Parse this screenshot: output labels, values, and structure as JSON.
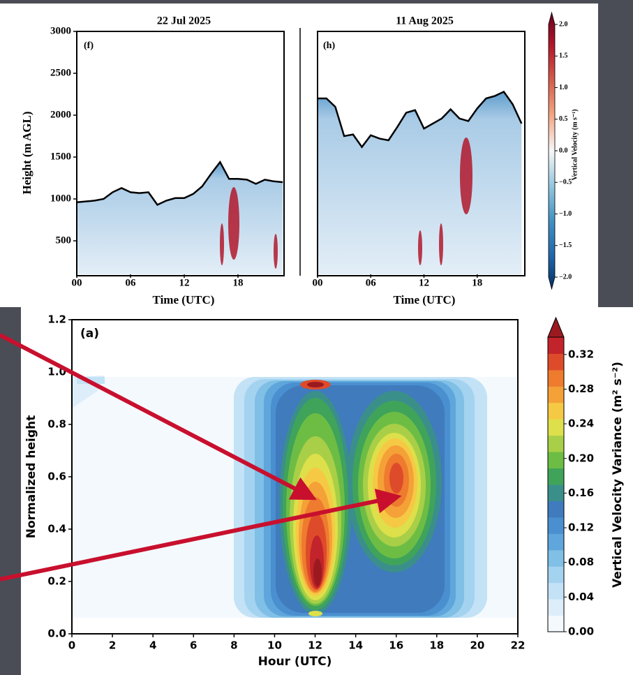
{
  "chart_data": [
    {
      "type": "heatmap",
      "title": "22 Jul 2025",
      "panel_label": "(f)",
      "xlabel": "Time (UTC)",
      "ylabel": "Height (m AGL)",
      "xlim": [
        0,
        24
      ],
      "ylim": [
        100,
        3000
      ],
      "xticks": [
        {
          "value": 0,
          "label": "00"
        },
        {
          "value": 6,
          "label": "06"
        },
        {
          "value": 12,
          "label": "12"
        },
        {
          "value": 18,
          "label": "18"
        }
      ],
      "yticks": [
        500,
        1000,
        1500,
        2000,
        2500,
        3000
      ],
      "boundary": {
        "color": "#000000",
        "x": [
          0,
          2,
          3,
          4,
          5,
          6,
          7,
          8,
          9,
          10,
          11,
          12,
          13,
          14,
          15,
          16,
          17,
          18,
          19,
          20,
          21,
          22,
          23
        ],
        "values": [
          960,
          980,
          1000,
          1080,
          1130,
          1080,
          1070,
          1080,
          930,
          980,
          1010,
          1010,
          1060,
          1150,
          1300,
          1440,
          1240,
          1240,
          1230,
          1180,
          1230,
          1210,
          1200
        ]
      }
    },
    {
      "type": "heatmap",
      "title": "11 Aug 2025",
      "panel_label": "(h)",
      "xlabel": "Time (UTC)",
      "xlim": [
        0,
        24
      ],
      "ylim": [
        100,
        3000
      ],
      "xticks": [
        {
          "value": 0,
          "label": "00"
        },
        {
          "value": 6,
          "label": "06"
        },
        {
          "value": 12,
          "label": "12"
        },
        {
          "value": 18,
          "label": "18"
        }
      ],
      "boundary": {
        "color": "#000000",
        "x": [
          0,
          1,
          2,
          3,
          4,
          5,
          6,
          7,
          8,
          9,
          10,
          11,
          12,
          13,
          14,
          15,
          16,
          17,
          18,
          19,
          20,
          21,
          22,
          23
        ],
        "values": [
          2200,
          2200,
          2100,
          1750,
          1770,
          1620,
          1760,
          1720,
          1700,
          1860,
          2030,
          2060,
          1840,
          1900,
          1960,
          2070,
          1960,
          1930,
          2080,
          2200,
          2230,
          2280,
          2130,
          1900
        ]
      },
      "colorbar": {
        "label": "Vertical Velocity (m s⁻¹)",
        "lim": [
          -2,
          2
        ],
        "ticks": [
          {
            "value": 2,
            "label": "2.0"
          },
          {
            "value": 1.5,
            "label": "1.5"
          },
          {
            "value": 1,
            "label": "1.0"
          },
          {
            "value": 0.5,
            "label": "0.5"
          },
          {
            "value": 0,
            "label": "0.0"
          },
          {
            "value": -0.5,
            "label": "−0.5"
          },
          {
            "value": -1,
            "label": "−1.0"
          },
          {
            "value": -1.5,
            "label": "−1.5"
          },
          {
            "value": -2,
            "label": "−2.0"
          }
        ]
      }
    },
    {
      "type": "contour",
      "panel_label": "(a)",
      "xlabel": "Hour (UTC)",
      "ylabel": "Normalized height",
      "xlim": [
        0,
        22
      ],
      "ylim": [
        0,
        1.2
      ],
      "xticks": [
        0,
        2,
        4,
        6,
        8,
        10,
        12,
        14,
        16,
        18,
        20,
        22
      ],
      "yticks": [
        {
          "value": 0,
          "label": "0.0"
        },
        {
          "value": 0.2,
          "label": "0.2"
        },
        {
          "value": 0.4,
          "label": "0.4"
        },
        {
          "value": 0.6,
          "label": "0.6"
        },
        {
          "value": 0.8,
          "label": "0.8"
        },
        {
          "value": 1,
          "label": "1.0"
        },
        {
          "value": 1.2,
          "label": "1.2"
        }
      ],
      "colorbar": {
        "label": "Vertical Velocity Variance (m² s⁻²)",
        "lim": [
          0,
          0.34
        ],
        "colors": [
          "#f4f9fe",
          "#ddeefa",
          "#c3e2f6",
          "#a4d3f0",
          "#80bfe6",
          "#5ea6db",
          "#4a8fcf",
          "#3f7bbd",
          "#3b8f8a",
          "#3fa45a",
          "#6dbd45",
          "#a8cf47",
          "#dde04a",
          "#f6c944",
          "#f4a138",
          "#ee7b2e",
          "#de4b2a",
          "#c3232a",
          "#9a1a20"
        ],
        "ticks": [
          {
            "value": 0,
            "label": "0.00"
          },
          {
            "value": 0.04,
            "label": "0.04"
          },
          {
            "value": 0.08,
            "label": "0.08"
          },
          {
            "value": 0.12,
            "label": "0.12"
          },
          {
            "value": 0.16,
            "label": "0.16"
          },
          {
            "value": 0.2,
            "label": "0.20"
          },
          {
            "value": 0.24,
            "label": "0.24"
          },
          {
            "value": 0.28,
            "label": "0.28"
          },
          {
            "value": 0.32,
            "label": "0.32"
          }
        ]
      }
    }
  ]
}
